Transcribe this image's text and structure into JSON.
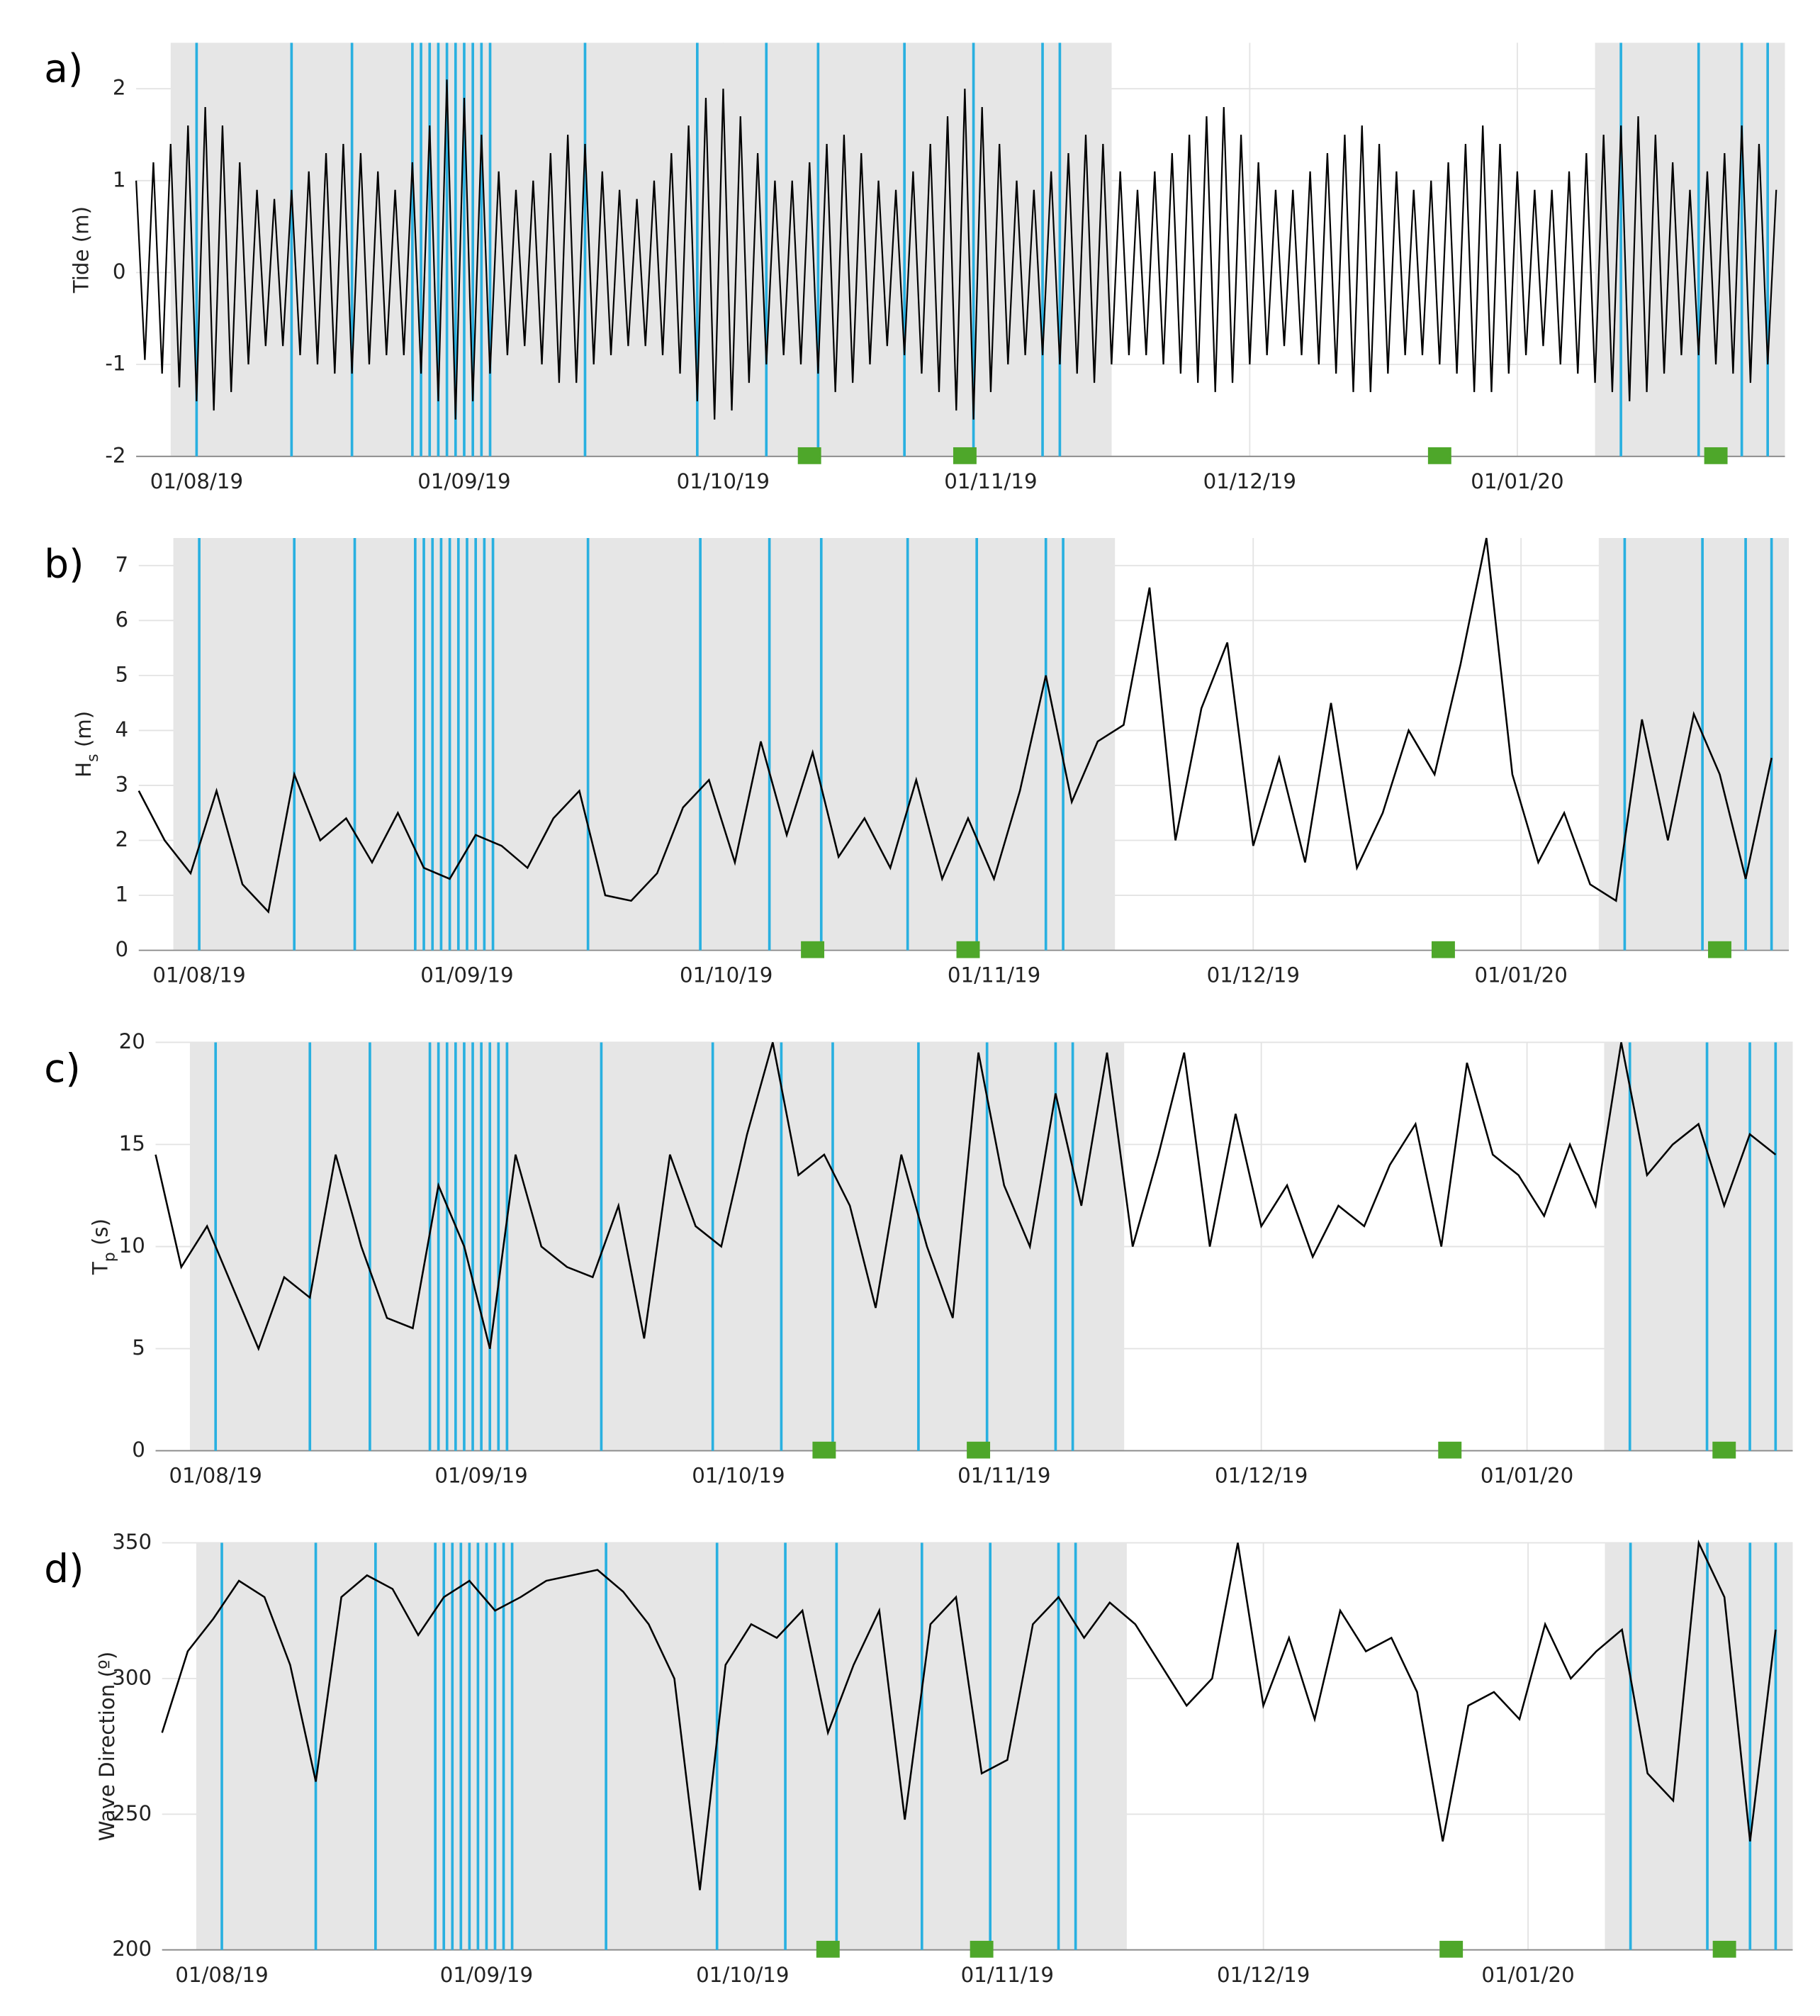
{
  "chart_data": [
    {
      "type": "line",
      "panel_label": "a)",
      "ylabel": [
        {
          "text": "Tide (m)"
        }
      ],
      "color": "#000000",
      "xlim": [
        "2019-07-25",
        "2020-02-01"
      ],
      "xticks": [
        {
          "value": "2019-08-01",
          "label": "01/08/19"
        },
        {
          "value": "2019-09-01",
          "label": "01/09/19"
        },
        {
          "value": "2019-10-01",
          "label": "01/10/19"
        },
        {
          "value": "2019-11-01",
          "label": "01/11/19"
        },
        {
          "value": "2019-12-01",
          "label": "01/12/19"
        },
        {
          "value": "2020-01-01",
          "label": "01/01/20"
        }
      ],
      "ylim": [
        -2,
        2.5
      ],
      "yticks": [
        -2,
        -1,
        0,
        1,
        2
      ],
      "grid": true,
      "x": [
        "2019-07-25",
        "2019-07-26",
        "2019-07-27",
        "2019-07-28",
        "2019-07-29",
        "2019-07-30",
        "2019-07-31",
        "2019-08-01",
        "2019-08-02",
        "2019-08-03",
        "2019-08-04",
        "2019-08-05",
        "2019-08-06",
        "2019-08-07",
        "2019-08-08",
        "2019-08-09",
        "2019-08-10",
        "2019-08-11",
        "2019-08-12",
        "2019-08-13",
        "2019-08-14",
        "2019-08-15",
        "2019-08-16",
        "2019-08-17",
        "2019-08-18",
        "2019-08-19",
        "2019-08-20",
        "2019-08-21",
        "2019-08-22",
        "2019-08-23",
        "2019-08-24",
        "2019-08-25",
        "2019-08-26",
        "2019-08-27",
        "2019-08-28",
        "2019-08-29",
        "2019-08-30",
        "2019-08-31",
        "2019-09-01",
        "2019-09-02",
        "2019-09-03",
        "2019-09-04",
        "2019-09-05",
        "2019-09-06",
        "2019-09-07",
        "2019-09-08",
        "2019-09-09",
        "2019-09-10",
        "2019-09-11",
        "2019-09-12",
        "2019-09-13",
        "2019-09-14",
        "2019-09-15",
        "2019-09-16",
        "2019-09-17",
        "2019-09-18",
        "2019-09-19",
        "2019-09-20",
        "2019-09-21",
        "2019-09-22",
        "2019-09-23",
        "2019-09-24",
        "2019-09-25",
        "2019-09-26",
        "2019-09-27",
        "2019-09-28",
        "2019-09-29",
        "2019-09-30",
        "2019-10-01",
        "2019-10-02",
        "2019-10-03",
        "2019-10-04",
        "2019-10-05",
        "2019-10-06",
        "2019-10-07",
        "2019-10-08",
        "2019-10-09",
        "2019-10-10",
        "2019-10-11",
        "2019-10-12",
        "2019-10-13",
        "2019-10-14",
        "2019-10-15",
        "2019-10-16",
        "2019-10-17",
        "2019-10-18",
        "2019-10-19",
        "2019-10-20",
        "2019-10-21",
        "2019-10-22",
        "2019-10-23",
        "2019-10-24",
        "2019-10-25",
        "2019-10-26",
        "2019-10-27",
        "2019-10-28",
        "2019-10-29",
        "2019-10-30",
        "2019-10-31",
        "2019-11-01",
        "2019-11-02",
        "2019-11-03",
        "2019-11-04",
        "2019-11-05",
        "2019-11-06",
        "2019-11-07",
        "2019-11-08",
        "2019-11-09",
        "2019-11-10",
        "2019-11-11",
        "2019-11-12",
        "2019-11-13",
        "2019-11-14",
        "2019-11-15",
        "2019-11-16",
        "2019-11-17",
        "2019-11-18",
        "2019-11-19",
        "2019-11-20",
        "2019-11-21",
        "2019-11-22",
        "2019-11-23",
        "2019-11-24",
        "2019-11-25",
        "2019-11-26",
        "2019-11-27",
        "2019-11-28",
        "2019-11-29",
        "2019-11-30",
        "2019-12-01",
        "2019-12-02",
        "2019-12-03",
        "2019-12-04",
        "2019-12-05",
        "2019-12-06",
        "2019-12-07",
        "2019-12-08",
        "2019-12-09",
        "2019-12-10",
        "2019-12-11",
        "2019-12-12",
        "2019-12-13",
        "2019-12-14",
        "2019-12-15",
        "2019-12-16",
        "2019-12-17",
        "2019-12-18",
        "2019-12-19",
        "2019-12-20",
        "2019-12-21",
        "2019-12-22",
        "2019-12-23",
        "2019-12-24",
        "2019-12-25",
        "2019-12-26",
        "2019-12-27",
        "2019-12-28",
        "2019-12-29",
        "2019-12-30",
        "2019-12-31",
        "2020-01-01",
        "2020-01-02",
        "2020-01-03",
        "2020-01-04",
        "2020-01-05",
        "2020-01-06",
        "2020-01-07",
        "2020-01-08",
        "2020-01-09",
        "2020-01-10",
        "2020-01-11",
        "2020-01-12",
        "2020-01-13",
        "2020-01-14",
        "2020-01-15",
        "2020-01-16",
        "2020-01-17",
        "2020-01-18",
        "2020-01-19",
        "2020-01-20",
        "2020-01-21",
        "2020-01-22",
        "2020-01-23",
        "2020-01-24",
        "2020-01-25",
        "2020-01-26",
        "2020-01-27",
        "2020-01-28",
        "2020-01-29",
        "2020-01-30",
        "2020-01-31"
      ],
      "values": [
        1.0,
        -0.95,
        1.2,
        -1.1,
        1.4,
        -1.25,
        1.6,
        -1.4,
        1.8,
        -1.5,
        1.6,
        -1.3,
        1.2,
        -1.0,
        0.9,
        -0.8,
        0.8,
        -0.8,
        0.9,
        -0.9,
        1.1,
        -1.0,
        1.3,
        -1.1,
        1.4,
        -1.1,
        1.3,
        -1.0,
        1.1,
        -0.9,
        0.9,
        -0.9,
        1.2,
        -1.1,
        1.6,
        -1.4,
        2.1,
        -1.6,
        1.9,
        -1.4,
        1.5,
        -1.1,
        1.1,
        -0.9,
        0.9,
        -0.8,
        1.0,
        -1.0,
        1.3,
        -1.2,
        1.5,
        -1.2,
        1.4,
        -1.0,
        1.1,
        -0.9,
        0.9,
        -0.8,
        0.8,
        -0.8,
        1.0,
        -0.9,
        1.3,
        -1.1,
        1.6,
        -1.4,
        1.9,
        -1.6,
        2.0,
        -1.5,
        1.7,
        -1.2,
        1.3,
        -1.0,
        1.0,
        -0.9,
        1.0,
        -1.0,
        1.2,
        -1.1,
        1.4,
        -1.3,
        1.5,
        -1.2,
        1.3,
        -1.0,
        1.0,
        -0.8,
        0.9,
        -0.9,
        1.1,
        -1.1,
        1.4,
        -1.3,
        1.7,
        -1.5,
        2.0,
        -1.6,
        1.8,
        -1.3,
        1.4,
        -1.0,
        1.0,
        -0.9,
        0.9,
        -0.9,
        1.1,
        -1.0,
        1.3,
        -1.1,
        1.5,
        -1.2,
        1.4,
        -1.0,
        1.1,
        -0.9,
        0.9,
        -0.9,
        1.1,
        -1.0,
        1.3,
        -1.1,
        1.5,
        -1.2,
        1.7,
        -1.3,
        1.8,
        -1.2,
        1.5,
        -1.0,
        1.2,
        -0.9,
        0.9,
        -0.8,
        0.9,
        -0.9,
        1.1,
        -1.0,
        1.3,
        -1.1,
        1.5,
        -1.3,
        1.6,
        -1.3,
        1.4,
        -1.1,
        1.1,
        -0.9,
        0.9,
        -0.9,
        1.0,
        -1.0,
        1.2,
        -1.1,
        1.4,
        -1.3,
        1.6,
        -1.3,
        1.4,
        -1.1,
        1.1,
        -0.9,
        0.9,
        -0.8,
        0.9,
        -1.0,
        1.1,
        -1.1,
        1.3,
        -1.2,
        1.5,
        -1.3,
        1.6,
        -1.4,
        1.7,
        -1.3,
        1.5,
        -1.1,
        1.2,
        -0.9,
        0.9,
        -0.9,
        1.1,
        -1.0,
        1.3,
        -1.1,
        1.6,
        -1.2,
        1.4,
        -1.0,
        0.9
      ]
    },
    {
      "type": "line",
      "panel_label": "b)",
      "ylabel": [
        {
          "text": "H"
        },
        {
          "text": "s",
          "sub": true
        },
        {
          "text": " (m)"
        }
      ],
      "color": "#000000",
      "xlim": [
        "2019-07-25",
        "2020-02-01"
      ],
      "xticks": [
        {
          "value": "2019-08-01",
          "label": "01/08/19"
        },
        {
          "value": "2019-09-01",
          "label": "01/09/19"
        },
        {
          "value": "2019-10-01",
          "label": "01/10/19"
        },
        {
          "value": "2019-11-01",
          "label": "01/11/19"
        },
        {
          "value": "2019-12-01",
          "label": "01/12/19"
        },
        {
          "value": "2020-01-01",
          "label": "01/01/20"
        }
      ],
      "ylim": [
        0,
        7.5
      ],
      "yticks": [
        0,
        1,
        2,
        3,
        4,
        5,
        6,
        7
      ],
      "grid": true,
      "x": [
        "2019-07-25",
        "2019-07-28",
        "2019-07-31",
        "2019-08-03",
        "2019-08-06",
        "2019-08-09",
        "2019-08-12",
        "2019-08-15",
        "2019-08-18",
        "2019-08-21",
        "2019-08-24",
        "2019-08-27",
        "2019-08-30",
        "2019-09-02",
        "2019-09-05",
        "2019-09-08",
        "2019-09-11",
        "2019-09-14",
        "2019-09-17",
        "2019-09-20",
        "2019-09-23",
        "2019-09-26",
        "2019-09-29",
        "2019-10-02",
        "2019-10-05",
        "2019-10-08",
        "2019-10-11",
        "2019-10-14",
        "2019-10-17",
        "2019-10-20",
        "2019-10-23",
        "2019-10-26",
        "2019-10-29",
        "2019-11-01",
        "2019-11-04",
        "2019-11-07",
        "2019-11-10",
        "2019-11-13",
        "2019-11-16",
        "2019-11-19",
        "2019-11-22",
        "2019-11-25",
        "2019-11-28",
        "2019-12-01",
        "2019-12-04",
        "2019-12-07",
        "2019-12-10",
        "2019-12-13",
        "2019-12-16",
        "2019-12-19",
        "2019-12-22",
        "2019-12-25",
        "2019-12-28",
        "2019-12-31",
        "2020-01-03",
        "2020-01-06",
        "2020-01-09",
        "2020-01-12",
        "2020-01-15",
        "2020-01-18",
        "2020-01-21",
        "2020-01-24",
        "2020-01-27",
        "2020-01-30"
      ],
      "values": [
        2.9,
        2.0,
        1.4,
        2.9,
        1.2,
        0.7,
        3.2,
        2.0,
        2.4,
        1.6,
        2.5,
        1.5,
        1.3,
        2.1,
        1.9,
        1.5,
        2.4,
        2.9,
        1.0,
        0.9,
        1.4,
        2.6,
        3.1,
        1.6,
        3.8,
        2.1,
        3.6,
        1.7,
        2.4,
        1.5,
        3.1,
        1.3,
        2.4,
        1.3,
        2.9,
        5.0,
        2.7,
        3.8,
        4.1,
        6.6,
        2.0,
        4.4,
        5.6,
        1.9,
        3.5,
        1.6,
        4.5,
        1.5,
        2.5,
        4.0,
        3.2,
        5.2,
        7.5,
        3.2,
        1.6,
        2.5,
        1.2,
        0.9,
        4.2,
        2.0,
        4.3,
        3.2,
        1.3,
        3.5
      ]
    },
    {
      "type": "line",
      "panel_label": "c)",
      "ylabel": [
        {
          "text": "T"
        },
        {
          "text": "p",
          "sub": true
        },
        {
          "text": " (s)"
        }
      ],
      "color": "#000000",
      "xlim": [
        "2019-07-25",
        "2020-02-01"
      ],
      "xticks": [
        {
          "value": "2019-08-01",
          "label": "01/08/19"
        },
        {
          "value": "2019-09-01",
          "label": "01/09/19"
        },
        {
          "value": "2019-10-01",
          "label": "01/10/19"
        },
        {
          "value": "2019-11-01",
          "label": "01/11/19"
        },
        {
          "value": "2019-12-01",
          "label": "01/12/19"
        },
        {
          "value": "2020-01-01",
          "label": "01/01/20"
        }
      ],
      "ylim": [
        0,
        20
      ],
      "yticks": [
        0,
        5,
        10,
        15,
        20
      ],
      "grid": true,
      "x": [
        "2019-07-25",
        "2019-07-28",
        "2019-07-31",
        "2019-08-03",
        "2019-08-06",
        "2019-08-09",
        "2019-08-12",
        "2019-08-15",
        "2019-08-18",
        "2019-08-21",
        "2019-08-24",
        "2019-08-27",
        "2019-08-30",
        "2019-09-02",
        "2019-09-05",
        "2019-09-08",
        "2019-09-11",
        "2019-09-14",
        "2019-09-17",
        "2019-09-20",
        "2019-09-23",
        "2019-09-26",
        "2019-09-29",
        "2019-10-02",
        "2019-10-05",
        "2019-10-08",
        "2019-10-11",
        "2019-10-14",
        "2019-10-17",
        "2019-10-20",
        "2019-10-23",
        "2019-10-26",
        "2019-10-29",
        "2019-11-01",
        "2019-11-04",
        "2019-11-07",
        "2019-11-10",
        "2019-11-13",
        "2019-11-16",
        "2019-11-19",
        "2019-11-22",
        "2019-11-25",
        "2019-11-28",
        "2019-12-01",
        "2019-12-04",
        "2019-12-07",
        "2019-12-10",
        "2019-12-13",
        "2019-12-16",
        "2019-12-19",
        "2019-12-22",
        "2019-12-25",
        "2019-12-28",
        "2019-12-31",
        "2020-01-03",
        "2020-01-06",
        "2020-01-09",
        "2020-01-12",
        "2020-01-15",
        "2020-01-18",
        "2020-01-21",
        "2020-01-24",
        "2020-01-27",
        "2020-01-30"
      ],
      "values": [
        14.5,
        9.0,
        11.0,
        8.0,
        5.0,
        8.5,
        7.5,
        14.5,
        10.0,
        6.5,
        6.0,
        13.0,
        10.0,
        5.0,
        14.5,
        10.0,
        9.0,
        8.5,
        12.0,
        5.5,
        14.5,
        11.0,
        10.0,
        15.5,
        20.0,
        13.5,
        14.5,
        12.0,
        7.0,
        14.5,
        10.0,
        6.5,
        19.5,
        13.0,
        10.0,
        17.5,
        12.0,
        19.5,
        10.0,
        14.5,
        19.5,
        10.0,
        16.5,
        11.0,
        13.0,
        9.5,
        12.0,
        11.0,
        14.0,
        16.0,
        10.0,
        19.0,
        14.5,
        13.5,
        11.5,
        15.0,
        12.0,
        20.0,
        13.5,
        15.0,
        16.0,
        12.0,
        15.5,
        14.5
      ]
    },
    {
      "type": "line",
      "panel_label": "d)",
      "ylabel": [
        {
          "text": "Wave Direction (º)"
        }
      ],
      "color": "#000000",
      "xlim": [
        "2019-07-25",
        "2020-02-01"
      ],
      "xticks": [
        {
          "value": "2019-08-01",
          "label": "01/08/19"
        },
        {
          "value": "2019-09-01",
          "label": "01/09/19"
        },
        {
          "value": "2019-10-01",
          "label": "01/10/19"
        },
        {
          "value": "2019-11-01",
          "label": "01/11/19"
        },
        {
          "value": "2019-12-01",
          "label": "01/12/19"
        },
        {
          "value": "2020-01-01",
          "label": "01/01/20"
        }
      ],
      "ylim": [
        200,
        350
      ],
      "yticks": [
        200,
        250,
        300,
        350
      ],
      "grid": true,
      "x": [
        "2019-07-25",
        "2019-07-28",
        "2019-07-31",
        "2019-08-03",
        "2019-08-06",
        "2019-08-09",
        "2019-08-12",
        "2019-08-15",
        "2019-08-18",
        "2019-08-21",
        "2019-08-24",
        "2019-08-27",
        "2019-08-30",
        "2019-09-02",
        "2019-09-05",
        "2019-09-08",
        "2019-09-11",
        "2019-09-14",
        "2019-09-17",
        "2019-09-20",
        "2019-09-23",
        "2019-09-26",
        "2019-09-29",
        "2019-10-02",
        "2019-10-05",
        "2019-10-08",
        "2019-10-11",
        "2019-10-14",
        "2019-10-17",
        "2019-10-20",
        "2019-10-23",
        "2019-10-26",
        "2019-10-29",
        "2019-11-01",
        "2019-11-04",
        "2019-11-07",
        "2019-11-10",
        "2019-11-13",
        "2019-11-16",
        "2019-11-19",
        "2019-11-22",
        "2019-11-25",
        "2019-11-28",
        "2019-12-01",
        "2019-12-04",
        "2019-12-07",
        "2019-12-10",
        "2019-12-13",
        "2019-12-16",
        "2019-12-19",
        "2019-12-22",
        "2019-12-25",
        "2019-12-28",
        "2019-12-31",
        "2020-01-03",
        "2020-01-06",
        "2020-01-09",
        "2020-01-12",
        "2020-01-15",
        "2020-01-18",
        "2020-01-21",
        "2020-01-24",
        "2020-01-27",
        "2020-01-30"
      ],
      "values": [
        280,
        310,
        322,
        336,
        330,
        305,
        262,
        330,
        338,
        333,
        316,
        330,
        336,
        325,
        330,
        336,
        338,
        340,
        332,
        320,
        300,
        222,
        305,
        320,
        315,
        325,
        280,
        305,
        325,
        248,
        320,
        330,
        265,
        270,
        320,
        330,
        315,
        328,
        320,
        305,
        290,
        300,
        350,
        290,
        315,
        285,
        325,
        310,
        315,
        295,
        240,
        290,
        295,
        285,
        320,
        300,
        310,
        318,
        265,
        255,
        350,
        330,
        240,
        318
      ]
    }
  ],
  "shaded_periods": [
    [
      "2019-07-29",
      "2019-11-15"
    ],
    [
      "2020-01-10",
      "2020-02-01"
    ]
  ],
  "shade_color": "#e6e6e6",
  "event_lines": [
    "2019-08-01",
    "2019-08-12",
    "2019-08-19",
    "2019-08-26",
    "2019-08-27",
    "2019-08-28",
    "2019-08-29",
    "2019-08-30",
    "2019-08-31",
    "2019-09-01",
    "2019-09-02",
    "2019-09-03",
    "2019-09-04",
    "2019-09-15",
    "2019-09-28",
    "2019-10-06",
    "2019-10-12",
    "2019-10-22",
    "2019-10-30",
    "2019-11-07",
    "2019-11-09",
    "2020-01-13",
    "2020-01-22",
    "2020-01-27",
    "2020-01-30"
  ],
  "event_color": "#29b0e0",
  "markers": [
    "2019-10-11",
    "2019-10-29",
    "2019-12-23",
    "2020-01-24"
  ],
  "marker_color": "#4ea72a"
}
